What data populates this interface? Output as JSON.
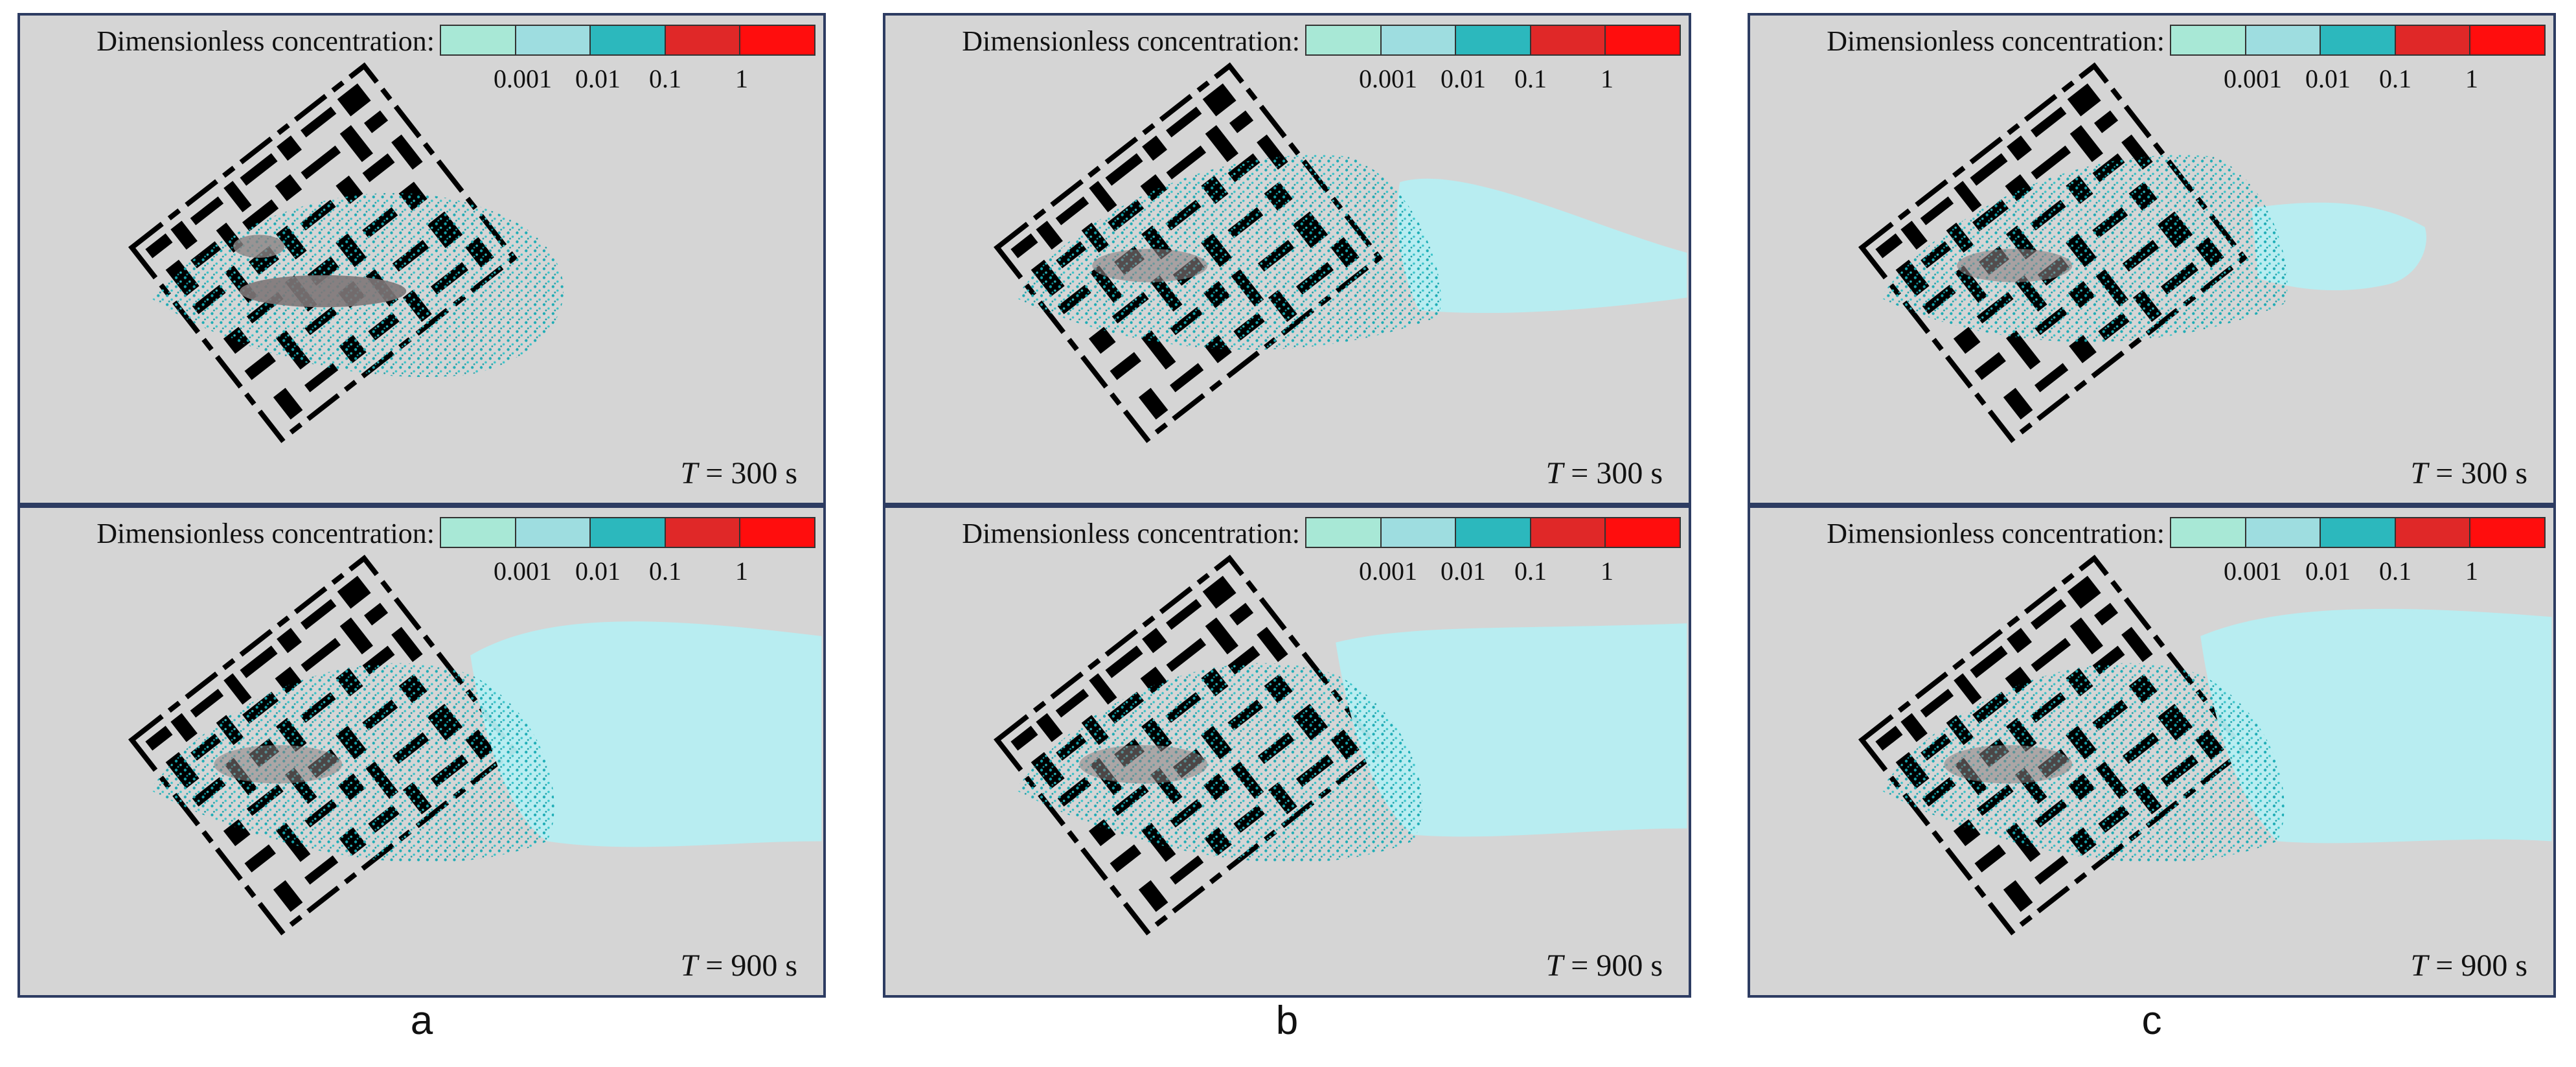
{
  "legend": {
    "title": "Dimensionless concentration:",
    "ticks": [
      "0.001",
      "0.01",
      "0.1",
      "1"
    ],
    "colors": [
      "#a8e8d6",
      "#9edde0",
      "#2cb8bd",
      "#e02828",
      "#ff0d0d"
    ]
  },
  "columns": [
    {
      "letter": "a",
      "panels": [
        {
          "time_var": "T",
          "time_value": "= 300 s"
        },
        {
          "time_var": "T",
          "time_value": "= 900 s"
        }
      ]
    },
    {
      "letter": "b",
      "panels": [
        {
          "time_var": "T",
          "time_value": "= 300 s"
        },
        {
          "time_var": "T",
          "time_value": "= 900 s"
        }
      ]
    },
    {
      "letter": "c",
      "panels": [
        {
          "time_var": "T",
          "time_value": "= 300 s"
        },
        {
          "time_var": "T",
          "time_value": "= 900 s"
        }
      ]
    }
  ],
  "colors": {
    "background": "#d5d5d5",
    "frame": "#2d3c62",
    "plume_dense": "#22b9c0",
    "plume_light": "#b6eef2",
    "buildings": "#000000"
  }
}
